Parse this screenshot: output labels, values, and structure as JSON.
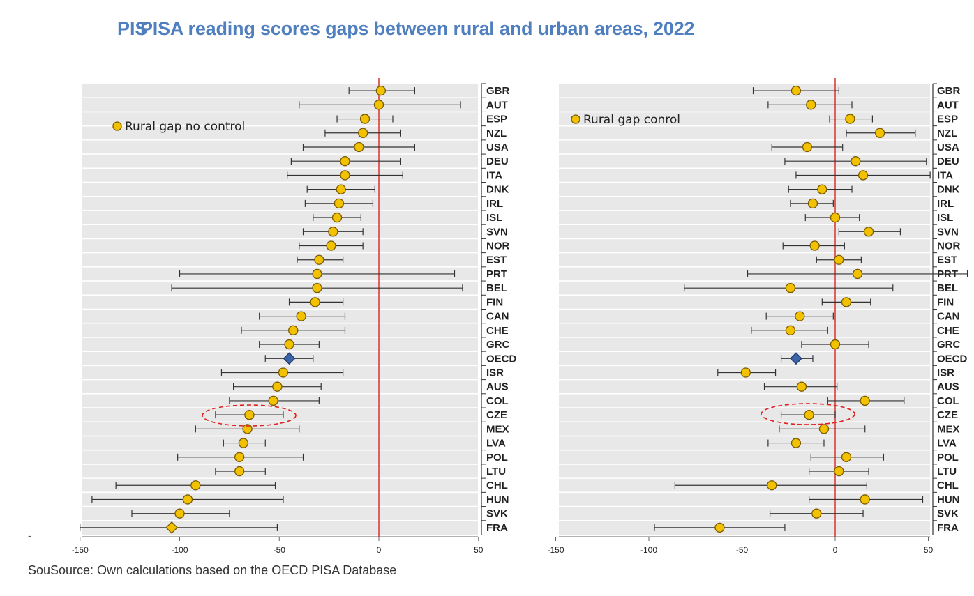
{
  "title_ghost": "PIS",
  "title": "PISA reading scores gaps between rural and urban areas, 2022",
  "source_ghost": "Sou",
  "source": "Source: Own calculations based on the OECD PISA Database",
  "stray_mark": "-",
  "colors": {
    "marker_fill": "#f2c200",
    "marker_stroke": "#7a5a00",
    "oecd_fill": "#3b63a8",
    "oecd_stroke": "#1f3a6b",
    "zero_line": "#d9342b",
    "panel_bg": "#e8e8e8",
    "error_bar": "#333333",
    "highlight": "#e02020"
  },
  "chart_data": [
    {
      "type": "scatter",
      "legend": "Rural gap no control",
      "legend_position": "top-left",
      "xlim": [
        -150,
        50
      ],
      "xticks": [
        -150,
        -100,
        -50,
        0,
        50
      ],
      "grid": true,
      "highlighted_country": "CZE",
      "series": [
        {
          "name": "Rural gap no control",
          "points": [
            {
              "country": "GBR",
              "value": 1,
              "low": -15,
              "high": 18
            },
            {
              "country": "AUT",
              "value": 0,
              "low": -40,
              "high": 41
            },
            {
              "country": "ESP",
              "value": -7,
              "low": -21,
              "high": 7
            },
            {
              "country": "NZL",
              "value": -8,
              "low": -27,
              "high": 11
            },
            {
              "country": "USA",
              "value": -10,
              "low": -38,
              "high": 18
            },
            {
              "country": "DEU",
              "value": -17,
              "low": -44,
              "high": 11
            },
            {
              "country": "ITA",
              "value": -17,
              "low": -46,
              "high": 12
            },
            {
              "country": "DNK",
              "value": -19,
              "low": -36,
              "high": -2
            },
            {
              "country": "IRL",
              "value": -20,
              "low": -37,
              "high": -3
            },
            {
              "country": "ISL",
              "value": -21,
              "low": -33,
              "high": -9
            },
            {
              "country": "SVN",
              "value": -23,
              "low": -38,
              "high": -8
            },
            {
              "country": "NOR",
              "value": -24,
              "low": -40,
              "high": -8
            },
            {
              "country": "EST",
              "value": -30,
              "low": -41,
              "high": -18
            },
            {
              "country": "PRT",
              "value": -31,
              "low": -100,
              "high": 38
            },
            {
              "country": "BEL",
              "value": -31,
              "low": -104,
              "high": 42
            },
            {
              "country": "FIN",
              "value": -32,
              "low": -45,
              "high": -18
            },
            {
              "country": "CAN",
              "value": -39,
              "low": -60,
              "high": -17
            },
            {
              "country": "CHE",
              "value": -43,
              "low": -69,
              "high": -17
            },
            {
              "country": "GRC",
              "value": -45,
              "low": -60,
              "high": -30
            },
            {
              "country": "OECD",
              "value": -45,
              "low": -57,
              "high": -33,
              "marker": "diamond"
            },
            {
              "country": "ISR",
              "value": -48,
              "low": -79,
              "high": -18
            },
            {
              "country": "AUS",
              "value": -51,
              "low": -73,
              "high": -29
            },
            {
              "country": "COL",
              "value": -53,
              "low": -75,
              "high": -30
            },
            {
              "country": "CZE",
              "value": -65,
              "low": -82,
              "high": -48
            },
            {
              "country": "MEX",
              "value": -66,
              "low": -92,
              "high": -40
            },
            {
              "country": "LVA",
              "value": -68,
              "low": -78,
              "high": -57
            },
            {
              "country": "POL",
              "value": -70,
              "low": -101,
              "high": -38
            },
            {
              "country": "LTU",
              "value": -70,
              "low": -82,
              "high": -57
            },
            {
              "country": "CHL",
              "value": -92,
              "low": -132,
              "high": -52
            },
            {
              "country": "HUN",
              "value": -96,
              "low": -144,
              "high": -48
            },
            {
              "country": "SVK",
              "value": -100,
              "low": -124,
              "high": -75
            },
            {
              "country": "FRA",
              "value": -104,
              "low": -150,
              "high": -51,
              "marker": "diamond"
            }
          ]
        }
      ]
    },
    {
      "type": "scatter",
      "legend": "Rural gap conrol",
      "legend_position": "top-left",
      "xlim": [
        -150,
        50
      ],
      "xticks": [
        -150,
        -100,
        -50,
        0,
        50
      ],
      "grid": true,
      "highlighted_country": "CZE",
      "series": [
        {
          "name": "Rural gap conrol",
          "points": [
            {
              "country": "GBR",
              "value": -21,
              "low": -44,
              "high": 2
            },
            {
              "country": "AUT",
              "value": -13,
              "low": -36,
              "high": 9
            },
            {
              "country": "ESP",
              "value": 8,
              "low": -3,
              "high": 20
            },
            {
              "country": "NZL",
              "value": 24,
              "low": 6,
              "high": 43
            },
            {
              "country": "USA",
              "value": -15,
              "low": -34,
              "high": 4
            },
            {
              "country": "DEU",
              "value": 11,
              "low": -27,
              "high": 49
            },
            {
              "country": "ITA",
              "value": 15,
              "low": -21,
              "high": 51
            },
            {
              "country": "DNK",
              "value": -7,
              "low": -25,
              "high": 9
            },
            {
              "country": "IRL",
              "value": -12,
              "low": -24,
              "high": -1
            },
            {
              "country": "ISL",
              "value": 0,
              "low": -16,
              "high": 13
            },
            {
              "country": "SVN",
              "value": 18,
              "low": 2,
              "high": 35
            },
            {
              "country": "NOR",
              "value": -11,
              "low": -28,
              "high": 5
            },
            {
              "country": "EST",
              "value": 2,
              "low": -10,
              "high": 14
            },
            {
              "country": "PRT",
              "value": 12,
              "low": -47,
              "high": 71
            },
            {
              "country": "BEL",
              "value": -24,
              "low": -81,
              "high": 31
            },
            {
              "country": "FIN",
              "value": 6,
              "low": -7,
              "high": 19
            },
            {
              "country": "CAN",
              "value": -19,
              "low": -37,
              "high": -1
            },
            {
              "country": "CHE",
              "value": -24,
              "low": -45,
              "high": -4
            },
            {
              "country": "GRC",
              "value": 0,
              "low": -18,
              "high": 18
            },
            {
              "country": "OECD",
              "value": -21,
              "low": -29,
              "high": -12,
              "marker": "diamond"
            },
            {
              "country": "ISR",
              "value": -48,
              "low": -63,
              "high": -32
            },
            {
              "country": "AUS",
              "value": -18,
              "low": -38,
              "high": 1
            },
            {
              "country": "COL",
              "value": 16,
              "low": -4,
              "high": 37
            },
            {
              "country": "CZE",
              "value": -14,
              "low": -29,
              "high": 0
            },
            {
              "country": "MEX",
              "value": -6,
              "low": -30,
              "high": 16
            },
            {
              "country": "LVA",
              "value": -21,
              "low": -36,
              "high": -6
            },
            {
              "country": "POL",
              "value": 6,
              "low": -13,
              "high": 26
            },
            {
              "country": "LTU",
              "value": 2,
              "low": -14,
              "high": 18
            },
            {
              "country": "CHL",
              "value": -34,
              "low": -86,
              "high": 17
            },
            {
              "country": "HUN",
              "value": 16,
              "low": -14,
              "high": 47
            },
            {
              "country": "SVK",
              "value": -10,
              "low": -35,
              "high": 15
            },
            {
              "country": "FRA",
              "value": -62,
              "low": -97,
              "high": -27
            }
          ]
        }
      ]
    }
  ]
}
